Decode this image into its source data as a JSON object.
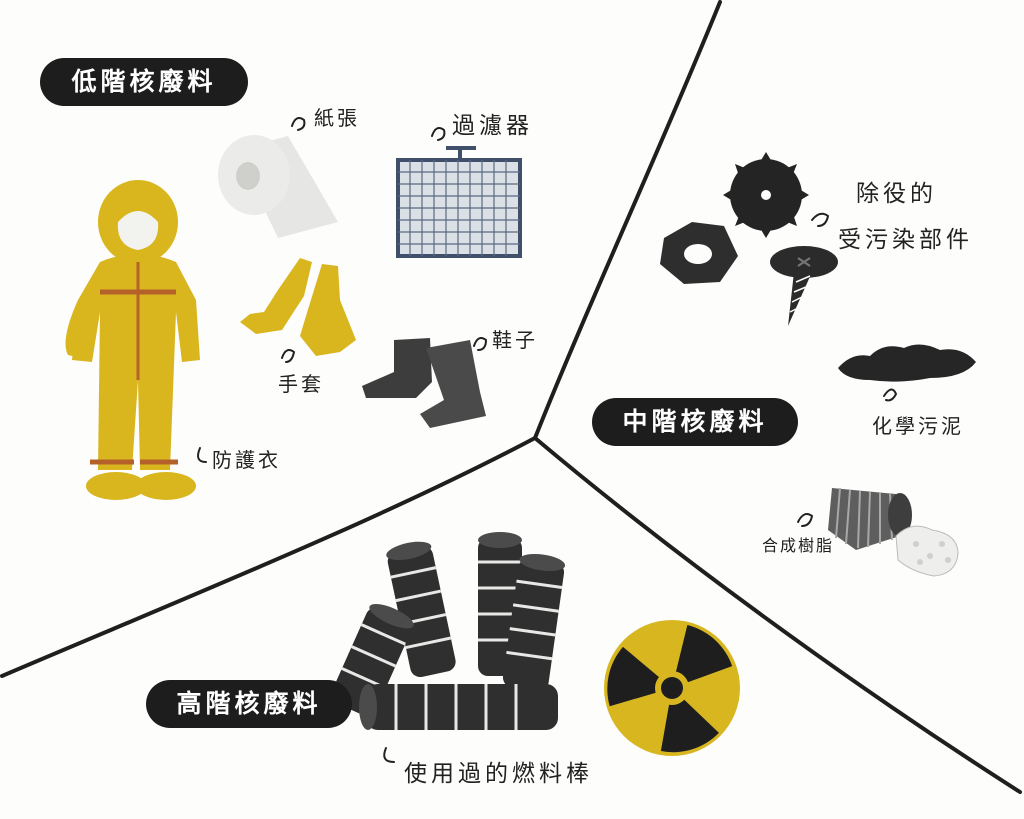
{
  "categories": {
    "low": {
      "title": "低階核廢料",
      "items": {
        "paper": "紙張",
        "filter": "過濾器",
        "gloves": "手套",
        "shoes": "鞋子",
        "suit": "防護衣"
      }
    },
    "intermediate": {
      "title": "中階核廢料",
      "items": {
        "parts": [
          "除役的",
          "受污染部件"
        ],
        "sludge": "化學污泥",
        "resin": "合成樹脂"
      }
    },
    "high": {
      "title": "高階核廢料",
      "items": {
        "fuel_rods": "使用過的燃料棒"
      }
    }
  },
  "colors": {
    "suit": "#d9b51e",
    "suit_trim": "#b5622a",
    "pill_bg": "#1d1d1d",
    "divider": "#1f1f1f",
    "radiation_yellow": "#d8b620"
  }
}
